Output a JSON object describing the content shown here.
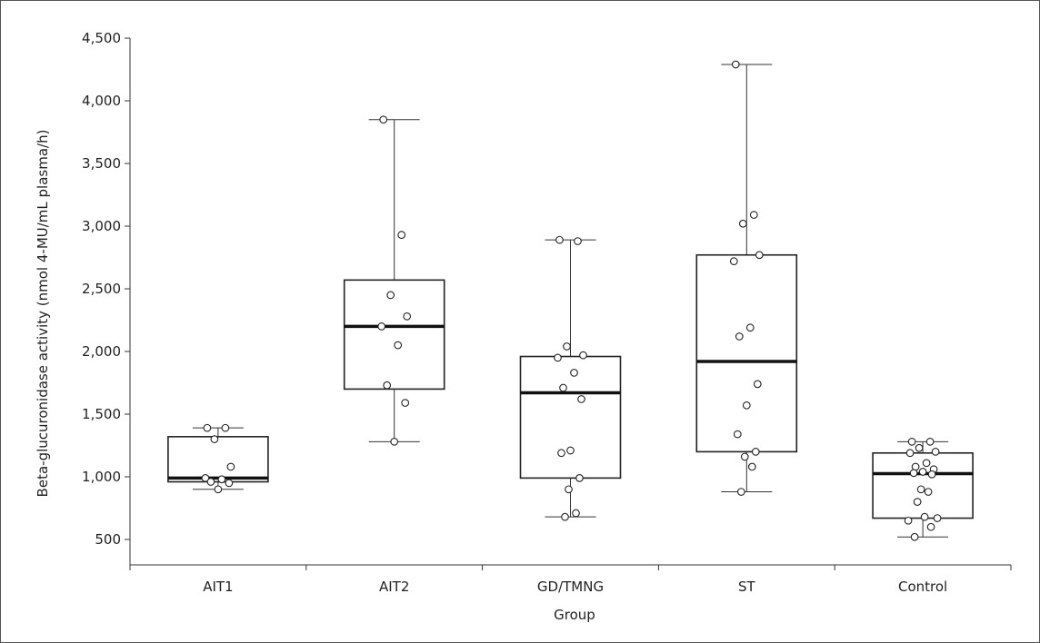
{
  "chart_data": {
    "type": "box",
    "xlabel": "Group",
    "ylabel": "Beta-glucuronidase activity (nmol 4-MU/mL plasma/h)",
    "ylim": [
      300,
      4500
    ],
    "yticks": [
      500,
      1000,
      1500,
      2000,
      2500,
      3000,
      3500,
      4000,
      4500
    ],
    "ytick_labels": [
      "500",
      "1,000",
      "1,500",
      "2,000",
      "2,500",
      "3,000",
      "3,500",
      "4,000",
      "4,500"
    ],
    "grid": false,
    "categories": [
      "AIT1",
      "AIT2",
      "GD/TMNG",
      "ST",
      "Control"
    ],
    "boxes": [
      {
        "category": "AIT1",
        "whisker_low": 900,
        "q1": 960,
        "median": 990,
        "q3": 1320,
        "whisker_high": 1390,
        "points": [
          1390,
          1390,
          1300,
          1080,
          990,
          980,
          960,
          950,
          900
        ]
      },
      {
        "category": "AIT2",
        "whisker_low": 1280,
        "q1": 1700,
        "median": 2200,
        "q3": 2570,
        "whisker_high": 3850,
        "points": [
          3850,
          2930,
          2450,
          2280,
          2200,
          2050,
          1730,
          1590,
          1280
        ]
      },
      {
        "category": "GD/TMNG",
        "whisker_low": 680,
        "q1": 990,
        "median": 1670,
        "q3": 1960,
        "whisker_high": 2890,
        "points": [
          2890,
          2880,
          2040,
          1970,
          1950,
          1830,
          1710,
          1620,
          1210,
          1190,
          990,
          900,
          710,
          680
        ]
      },
      {
        "category": "ST",
        "whisker_low": 880,
        "q1": 1200,
        "median": 1920,
        "q3": 2770,
        "whisker_high": 4290,
        "points": [
          4290,
          3090,
          3020,
          2770,
          2720,
          2190,
          2120,
          1740,
          1570,
          1340,
          1200,
          1160,
          1080,
          880
        ]
      },
      {
        "category": "Control",
        "whisker_low": 520,
        "q1": 670,
        "median": 1025,
        "q3": 1190,
        "whisker_high": 1280,
        "points": [
          1280,
          1280,
          1230,
          1200,
          1190,
          1110,
          1080,
          1060,
          1040,
          1030,
          1020,
          900,
          880,
          800,
          680,
          670,
          650,
          600,
          520
        ]
      }
    ]
  }
}
